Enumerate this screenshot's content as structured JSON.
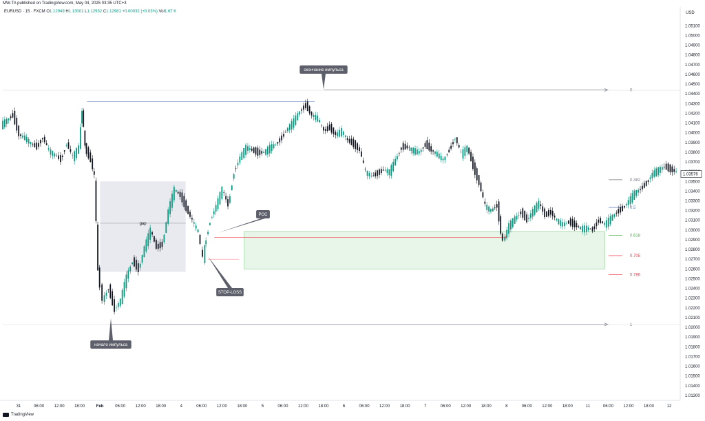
{
  "header": {
    "credit": "MW-TA published on TradingView.com, May 04, 2025 03:35 UTC+3",
    "symbol": "EURUSD · 15 · FXCM",
    "ohlc": [
      {
        "k": "O",
        "v": "1.12949"
      },
      {
        "k": "H",
        "v": "1.13001"
      },
      {
        "k": "L",
        "v": "1.12932"
      },
      {
        "k": "C",
        "v": "1.12981"
      },
      {
        "k": "",
        "v": "+0.00032 (+0.03%)"
      },
      {
        "k": "Vol",
        "v": "1.67 K"
      }
    ]
  },
  "footer": {
    "brand": "TradingView"
  },
  "colors": {
    "up": "#089981",
    "down": "#131722",
    "grid": "#f0f3fa",
    "blue": "#5b7fb8",
    "red": "#f23645",
    "green_zone": "#e8f5e9",
    "gray_zone": "#e9eaf0"
  },
  "chart_data": {
    "type": "candlestick",
    "currency": "USD",
    "price_ticks": [
      "1.05100",
      "1.05000",
      "1.04900",
      "1.04800",
      "1.04700",
      "1.04600",
      "1.04500",
      "1.04400",
      "1.04300",
      "1.04200",
      "1.04100",
      "1.04000",
      "1.03900",
      "1.03800",
      "1.03700",
      "1.03600",
      "1.03500",
      "1.03400",
      "1.03300",
      "1.03200",
      "1.03100",
      "1.03000",
      "1.02900",
      "1.02800",
      "1.02700",
      "1.02600",
      "1.02500",
      "1.02400",
      "1.02300",
      "1.02200",
      "1.02100",
      "1.02000",
      "1.01900",
      "1.01800",
      "1.01700",
      "1.01600",
      "1.01500",
      "1.01400",
      "1.01300"
    ],
    "ylim": [
      1.0125,
      1.0518
    ],
    "current_price": "1.03576",
    "time_ticks": [
      {
        "label": "31",
        "bold": false
      },
      {
        "label": "06:00",
        "bold": false
      },
      {
        "label": "12:00",
        "bold": false
      },
      {
        "label": "18:00",
        "bold": false
      },
      {
        "label": "Feb",
        "bold": true
      },
      {
        "label": "06:00",
        "bold": false
      },
      {
        "label": "12:00",
        "bold": false
      },
      {
        "label": "18:00",
        "bold": false
      },
      {
        "label": "4",
        "bold": false
      },
      {
        "label": "06:00",
        "bold": false
      },
      {
        "label": "12:00",
        "bold": false
      },
      {
        "label": "18:00",
        "bold": false
      },
      {
        "label": "5",
        "bold": false
      },
      {
        "label": "06:00",
        "bold": false
      },
      {
        "label": "12:00",
        "bold": false
      },
      {
        "label": "18:00",
        "bold": false
      },
      {
        "label": "6",
        "bold": false
      },
      {
        "label": "06:00",
        "bold": false
      },
      {
        "label": "12:00",
        "bold": false
      },
      {
        "label": "18:00",
        "bold": false
      },
      {
        "label": "7",
        "bold": false
      },
      {
        "label": "06:00",
        "bold": false
      },
      {
        "label": "12:00",
        "bold": false
      },
      {
        "label": "18:00",
        "bold": false
      },
      {
        "label": "8",
        "bold": false
      },
      {
        "label": "06:00",
        "bold": false
      },
      {
        "label": "12:00",
        "bold": false
      },
      {
        "label": "18:00",
        "bold": false
      },
      {
        "label": "11",
        "bold": false
      },
      {
        "label": "06:00",
        "bold": false
      },
      {
        "label": "12:00",
        "bold": false
      },
      {
        "label": "18:00",
        "bold": false
      },
      {
        "label": "12",
        "bold": false
      }
    ],
    "price_path": [
      [
        0,
        1.0408
      ],
      [
        2,
        1.0418
      ],
      [
        3,
        1.0398
      ],
      [
        4,
        1.0395
      ],
      [
        5,
        1.0389
      ],
      [
        6,
        1.0385
      ],
      [
        7,
        1.0395
      ],
      [
        8,
        1.0382
      ],
      [
        9,
        1.0377
      ],
      [
        10,
        1.0372
      ],
      [
        11,
        1.0389
      ],
      [
        12,
        1.0375
      ],
      [
        13,
        1.0385
      ],
      [
        13.5,
        1.0425
      ],
      [
        14,
        1.0385
      ],
      [
        15,
        1.0372
      ],
      [
        15.6,
        1.0355
      ],
      [
        16.2,
        1.0258
      ],
      [
        17,
        1.0228
      ],
      [
        18,
        1.024
      ],
      [
        19,
        1.0218
      ],
      [
        20,
        1.0228
      ],
      [
        21,
        1.0252
      ],
      [
        22,
        1.0268
      ],
      [
        23,
        1.0259
      ],
      [
        24,
        1.0282
      ],
      [
        25,
        1.03
      ],
      [
        26,
        1.0282
      ],
      [
        27,
        1.0285
      ],
      [
        28,
        1.032
      ],
      [
        29,
        1.0342
      ],
      [
        30,
        1.0335
      ],
      [
        31,
        1.0322
      ],
      [
        32,
        1.031
      ],
      [
        33,
        1.0298
      ],
      [
        33.8,
        1.027
      ],
      [
        34,
        1.0282
      ],
      [
        35,
        1.031
      ],
      [
        36,
        1.0325
      ],
      [
        37,
        1.0342
      ],
      [
        38,
        1.0325
      ],
      [
        39,
        1.036
      ],
      [
        40,
        1.0375
      ],
      [
        41,
        1.0385
      ],
      [
        42,
        1.0382
      ],
      [
        43,
        1.0379
      ],
      [
        44,
        1.038
      ],
      [
        45,
        1.0385
      ],
      [
        46,
        1.0388
      ],
      [
        47,
        1.0395
      ],
      [
        48,
        1.0405
      ],
      [
        49,
        1.0412
      ],
      [
        50,
        1.0422
      ],
      [
        51,
        1.0428
      ],
      [
        52,
        1.0418
      ],
      [
        53,
        1.0415
      ],
      [
        54,
        1.0402
      ],
      [
        55,
        1.0405
      ],
      [
        56,
        1.0398
      ],
      [
        57,
        1.0402
      ],
      [
        58,
        1.0392
      ],
      [
        59,
        1.0388
      ],
      [
        60,
        1.0382
      ],
      [
        61,
        1.036
      ],
      [
        62,
        1.0355
      ],
      [
        63,
        1.0358
      ],
      [
        64,
        1.0362
      ],
      [
        65,
        1.036
      ],
      [
        66,
        1.0372
      ],
      [
        67,
        1.0385
      ],
      [
        68,
        1.0385
      ],
      [
        69,
        1.0382
      ],
      [
        70,
        1.038
      ],
      [
        71,
        1.0388
      ],
      [
        72,
        1.0382
      ],
      [
        73,
        1.0378
      ],
      [
        74,
        1.0372
      ],
      [
        75,
        1.0382
      ],
      [
        76,
        1.0395
      ],
      [
        77,
        1.0378
      ],
      [
        78,
        1.0385
      ],
      [
        79,
        1.0365
      ],
      [
        80,
        1.0348
      ],
      [
        81,
        1.0325
      ],
      [
        82,
        1.032
      ],
      [
        83,
        1.0325
      ],
      [
        83.6,
        1.0298
      ],
      [
        84,
        1.0288
      ],
      [
        85,
        1.0305
      ],
      [
        86,
        1.0312
      ],
      [
        87,
        1.0318
      ],
      [
        88,
        1.031
      ],
      [
        89,
        1.032
      ],
      [
        90,
        1.0328
      ],
      [
        91,
        1.0315
      ],
      [
        92,
        1.0318
      ],
      [
        93,
        1.031
      ],
      [
        94,
        1.0306
      ],
      [
        95,
        1.0308
      ],
      [
        96,
        1.0305
      ],
      [
        97,
        1.0302
      ],
      [
        98,
        1.0302
      ],
      [
        99,
        1.03
      ],
      [
        100,
        1.031
      ],
      [
        101,
        1.0306
      ],
      [
        102,
        1.0312
      ],
      [
        103,
        1.0318
      ],
      [
        104,
        1.0322
      ],
      [
        105,
        1.033
      ],
      [
        106,
        1.0338
      ],
      [
        107,
        1.0342
      ],
      [
        108,
        1.0348
      ],
      [
        109,
        1.0358
      ],
      [
        110,
        1.0362
      ],
      [
        111,
        1.0365
      ],
      [
        112,
        1.0362
      ],
      [
        113,
        1.036
      ]
    ],
    "annotations": {
      "impulse_end": "окончание импульса",
      "impulse_start": "начало импульса",
      "gap": "gap",
      "poc": "POC",
      "stop_loss": "STOP-LOSS"
    },
    "fib_levels": [
      {
        "label": "0",
        "price": 1.0444,
        "color": "#787b86"
      },
      {
        "label": "0.382",
        "price": 1.03517,
        "color": "#787b86"
      },
      {
        "label": "0.5",
        "price": 1.03232,
        "color": "#5b7fb8"
      },
      {
        "label": "0.618",
        "price": 1.02947,
        "color": "#4caf50"
      },
      {
        "label": "0.705",
        "price": 1.02737,
        "color": "#f23645"
      },
      {
        "label": "0.786",
        "price": 1.02541,
        "color": "#f23645"
      },
      {
        "label": "1",
        "price": 1.0203,
        "color": "#787b86"
      }
    ]
  }
}
